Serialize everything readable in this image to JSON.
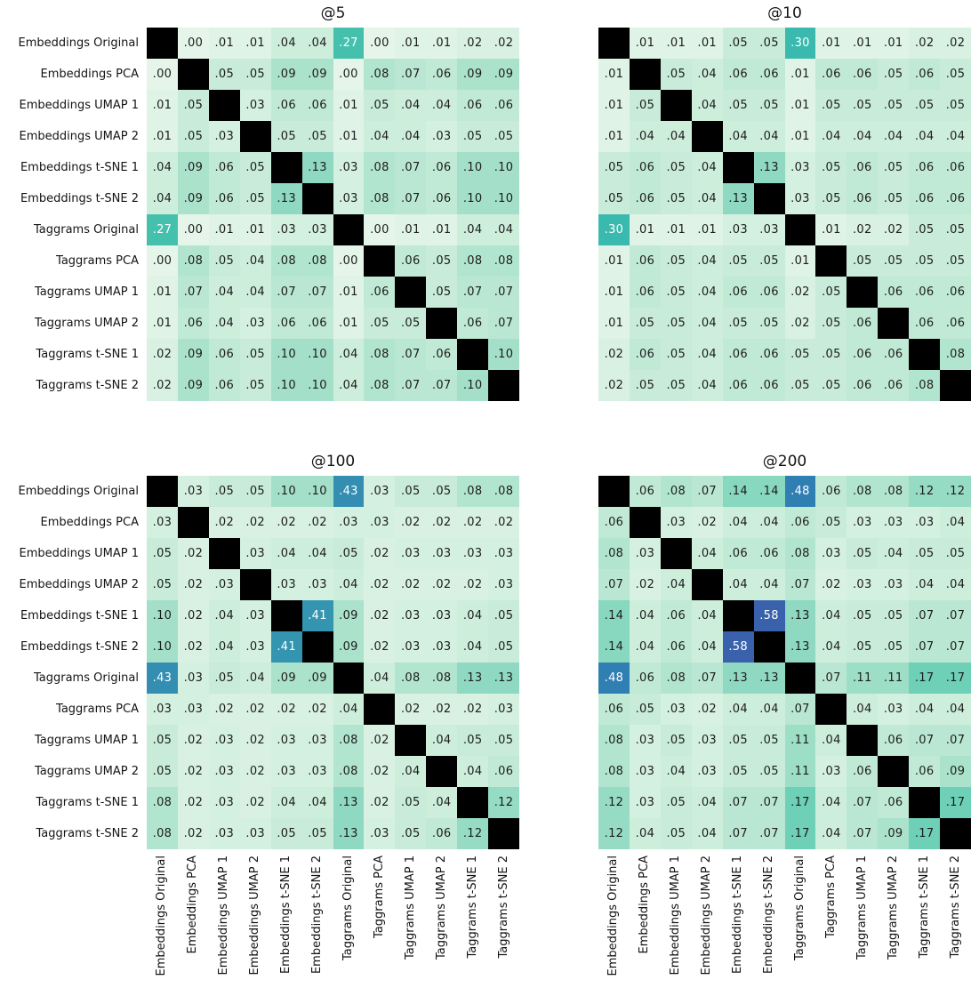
{
  "figure": {
    "background": "#ffffff",
    "row_labels": [
      "Embeddings Original",
      "Embeddings PCA",
      "Embeddings UMAP 1",
      "Embeddings UMAP 2",
      "Embeddings t-SNE 1",
      "Embeddings t-SNE 2",
      "Taggrams Original",
      "Taggrams PCA",
      "Taggrams UMAP 1",
      "Taggrams UMAP 2",
      "Taggrams t-SNE 1",
      "Taggrams t-SNE 2"
    ],
    "col_labels": [
      "Embeddings Original",
      "Embeddings PCA",
      "Embeddings UMAP 1",
      "Embeddings UMAP 2",
      "Embeddings t-SNE 1",
      "Embeddings t-SNE 2",
      "Taggrams Original",
      "Taggrams PCA",
      "Taggrams UMAP 1",
      "Taggrams UMAP 2",
      "Taggrams t-SNE 1",
      "Taggrams t-SNE 2"
    ]
  },
  "style": {
    "diagonal_color": "#000000",
    "annotation_dark_color": "#1c1c1c",
    "annotation_light_color": "#ffffff",
    "light_text_threshold": 0.25,
    "colormap_stops": [
      [
        0.0,
        "#e5f5ea"
      ],
      [
        0.05,
        "#c8ecd9"
      ],
      [
        0.1,
        "#a4e0c9"
      ],
      [
        0.14,
        "#88d7bf"
      ],
      [
        0.17,
        "#6ed0b6"
      ],
      [
        0.2,
        "#5ccab1"
      ],
      [
        0.27,
        "#44c0ad"
      ],
      [
        0.3,
        "#3abaae"
      ],
      [
        0.43,
        "#338eb1"
      ],
      [
        0.48,
        "#2f7fb3"
      ],
      [
        0.58,
        "#3a62ac"
      ],
      [
        0.75,
        "#3c3e70"
      ],
      [
        1.0,
        "#0b0405"
      ]
    ]
  },
  "chart_data": [
    {
      "type": "heatmap",
      "title": "@5",
      "annotation_format": ".XX",
      "categories": [
        "Embeddings Original",
        "Embeddings PCA",
        "Embeddings UMAP 1",
        "Embeddings UMAP 2",
        "Embeddings t-SNE 1",
        "Embeddings t-SNE 2",
        "Taggrams Original",
        "Taggrams PCA",
        "Taggrams UMAP 1",
        "Taggrams UMAP 2",
        "Taggrams t-SNE 1",
        "Taggrams t-SNE 2"
      ],
      "values": [
        [
          null,
          0.0,
          0.01,
          0.01,
          0.04,
          0.04,
          0.27,
          0.0,
          0.01,
          0.01,
          0.02,
          0.02
        ],
        [
          0.0,
          null,
          0.05,
          0.05,
          0.09,
          0.09,
          0.0,
          0.08,
          0.07,
          0.06,
          0.09,
          0.09
        ],
        [
          0.01,
          0.05,
          null,
          0.03,
          0.06,
          0.06,
          0.01,
          0.05,
          0.04,
          0.04,
          0.06,
          0.06
        ],
        [
          0.01,
          0.05,
          0.03,
          null,
          0.05,
          0.05,
          0.01,
          0.04,
          0.04,
          0.03,
          0.05,
          0.05
        ],
        [
          0.04,
          0.09,
          0.06,
          0.05,
          null,
          0.13,
          0.03,
          0.08,
          0.07,
          0.06,
          0.1,
          0.1
        ],
        [
          0.04,
          0.09,
          0.06,
          0.05,
          0.13,
          null,
          0.03,
          0.08,
          0.07,
          0.06,
          0.1,
          0.1
        ],
        [
          0.27,
          0.0,
          0.01,
          0.01,
          0.03,
          0.03,
          null,
          0.0,
          0.01,
          0.01,
          0.04,
          0.04
        ],
        [
          0.0,
          0.08,
          0.05,
          0.04,
          0.08,
          0.08,
          0.0,
          null,
          0.06,
          0.05,
          0.08,
          0.08
        ],
        [
          0.01,
          0.07,
          0.04,
          0.04,
          0.07,
          0.07,
          0.01,
          0.06,
          null,
          0.05,
          0.07,
          0.07
        ],
        [
          0.01,
          0.06,
          0.04,
          0.03,
          0.06,
          0.06,
          0.01,
          0.05,
          0.05,
          null,
          0.06,
          0.07
        ],
        [
          0.02,
          0.09,
          0.06,
          0.05,
          0.1,
          0.1,
          0.04,
          0.08,
          0.07,
          0.06,
          null,
          0.1
        ],
        [
          0.02,
          0.09,
          0.06,
          0.05,
          0.1,
          0.1,
          0.04,
          0.08,
          0.07,
          0.07,
          0.1,
          null
        ]
      ]
    },
    {
      "type": "heatmap",
      "title": "@10",
      "annotation_format": ".XX",
      "categories": [
        "Embeddings Original",
        "Embeddings PCA",
        "Embeddings UMAP 1",
        "Embeddings UMAP 2",
        "Embeddings t-SNE 1",
        "Embeddings t-SNE 2",
        "Taggrams Original",
        "Taggrams PCA",
        "Taggrams UMAP 1",
        "Taggrams UMAP 2",
        "Taggrams t-SNE 1",
        "Taggrams t-SNE 2"
      ],
      "values": [
        [
          null,
          0.01,
          0.01,
          0.01,
          0.05,
          0.05,
          0.3,
          0.01,
          0.01,
          0.01,
          0.02,
          0.02
        ],
        [
          0.01,
          null,
          0.05,
          0.04,
          0.06,
          0.06,
          0.01,
          0.06,
          0.06,
          0.05,
          0.06,
          0.05
        ],
        [
          0.01,
          0.05,
          null,
          0.04,
          0.05,
          0.05,
          0.01,
          0.05,
          0.05,
          0.05,
          0.05,
          0.05
        ],
        [
          0.01,
          0.04,
          0.04,
          null,
          0.04,
          0.04,
          0.01,
          0.04,
          0.04,
          0.04,
          0.04,
          0.04
        ],
        [
          0.05,
          0.06,
          0.05,
          0.04,
          null,
          0.13,
          0.03,
          0.05,
          0.06,
          0.05,
          0.06,
          0.06
        ],
        [
          0.05,
          0.06,
          0.05,
          0.04,
          0.13,
          null,
          0.03,
          0.05,
          0.06,
          0.05,
          0.06,
          0.06
        ],
        [
          0.3,
          0.01,
          0.01,
          0.01,
          0.03,
          0.03,
          null,
          0.01,
          0.02,
          0.02,
          0.05,
          0.05
        ],
        [
          0.01,
          0.06,
          0.05,
          0.04,
          0.05,
          0.05,
          0.01,
          null,
          0.05,
          0.05,
          0.05,
          0.05
        ],
        [
          0.01,
          0.06,
          0.05,
          0.04,
          0.06,
          0.06,
          0.02,
          0.05,
          null,
          0.06,
          0.06,
          0.06
        ],
        [
          0.01,
          0.05,
          0.05,
          0.04,
          0.05,
          0.05,
          0.02,
          0.05,
          0.06,
          null,
          0.06,
          0.06
        ],
        [
          0.02,
          0.06,
          0.05,
          0.04,
          0.06,
          0.06,
          0.05,
          0.05,
          0.06,
          0.06,
          null,
          0.08
        ],
        [
          0.02,
          0.05,
          0.05,
          0.04,
          0.06,
          0.06,
          0.05,
          0.05,
          0.06,
          0.06,
          0.08,
          null
        ]
      ]
    },
    {
      "type": "heatmap",
      "title": "@100",
      "annotation_format": ".XX",
      "categories": [
        "Embeddings Original",
        "Embeddings PCA",
        "Embeddings UMAP 1",
        "Embeddings UMAP 2",
        "Embeddings t-SNE 1",
        "Embeddings t-SNE 2",
        "Taggrams Original",
        "Taggrams PCA",
        "Taggrams UMAP 1",
        "Taggrams UMAP 2",
        "Taggrams t-SNE 1",
        "Taggrams t-SNE 2"
      ],
      "values": [
        [
          null,
          0.03,
          0.05,
          0.05,
          0.1,
          0.1,
          0.43,
          0.03,
          0.05,
          0.05,
          0.08,
          0.08
        ],
        [
          0.03,
          null,
          0.02,
          0.02,
          0.02,
          0.02,
          0.03,
          0.03,
          0.02,
          0.02,
          0.02,
          0.02
        ],
        [
          0.05,
          0.02,
          null,
          0.03,
          0.04,
          0.04,
          0.05,
          0.02,
          0.03,
          0.03,
          0.03,
          0.03
        ],
        [
          0.05,
          0.02,
          0.03,
          null,
          0.03,
          0.03,
          0.04,
          0.02,
          0.02,
          0.02,
          0.02,
          0.03
        ],
        [
          0.1,
          0.02,
          0.04,
          0.03,
          null,
          0.41,
          0.09,
          0.02,
          0.03,
          0.03,
          0.04,
          0.05
        ],
        [
          0.1,
          0.02,
          0.04,
          0.03,
          0.41,
          null,
          0.09,
          0.02,
          0.03,
          0.03,
          0.04,
          0.05
        ],
        [
          0.43,
          0.03,
          0.05,
          0.04,
          0.09,
          0.09,
          null,
          0.04,
          0.08,
          0.08,
          0.13,
          0.13
        ],
        [
          0.03,
          0.03,
          0.02,
          0.02,
          0.02,
          0.02,
          0.04,
          null,
          0.02,
          0.02,
          0.02,
          0.03
        ],
        [
          0.05,
          0.02,
          0.03,
          0.02,
          0.03,
          0.03,
          0.08,
          0.02,
          null,
          0.04,
          0.05,
          0.05
        ],
        [
          0.05,
          0.02,
          0.03,
          0.02,
          0.03,
          0.03,
          0.08,
          0.02,
          0.04,
          null,
          0.04,
          0.06
        ],
        [
          0.08,
          0.02,
          0.03,
          0.02,
          0.04,
          0.04,
          0.13,
          0.02,
          0.05,
          0.04,
          null,
          0.12
        ],
        [
          0.08,
          0.02,
          0.03,
          0.03,
          0.05,
          0.05,
          0.13,
          0.03,
          0.05,
          0.06,
          0.12,
          null
        ]
      ]
    },
    {
      "type": "heatmap",
      "title": "@200",
      "annotation_format": ".XX",
      "categories": [
        "Embeddings Original",
        "Embeddings PCA",
        "Embeddings UMAP 1",
        "Embeddings UMAP 2",
        "Embeddings t-SNE 1",
        "Embeddings t-SNE 2",
        "Taggrams Original",
        "Taggrams PCA",
        "Taggrams UMAP 1",
        "Taggrams UMAP 2",
        "Taggrams t-SNE 1",
        "Taggrams t-SNE 2"
      ],
      "values": [
        [
          null,
          0.06,
          0.08,
          0.07,
          0.14,
          0.14,
          0.48,
          0.06,
          0.08,
          0.08,
          0.12,
          0.12
        ],
        [
          0.06,
          null,
          0.03,
          0.02,
          0.04,
          0.04,
          0.06,
          0.05,
          0.03,
          0.03,
          0.03,
          0.04
        ],
        [
          0.08,
          0.03,
          null,
          0.04,
          0.06,
          0.06,
          0.08,
          0.03,
          0.05,
          0.04,
          0.05,
          0.05
        ],
        [
          0.07,
          0.02,
          0.04,
          null,
          0.04,
          0.04,
          0.07,
          0.02,
          0.03,
          0.03,
          0.04,
          0.04
        ],
        [
          0.14,
          0.04,
          0.06,
          0.04,
          null,
          0.58,
          0.13,
          0.04,
          0.05,
          0.05,
          0.07,
          0.07
        ],
        [
          0.14,
          0.04,
          0.06,
          0.04,
          0.58,
          null,
          0.13,
          0.04,
          0.05,
          0.05,
          0.07,
          0.07
        ],
        [
          0.48,
          0.06,
          0.08,
          0.07,
          0.13,
          0.13,
          null,
          0.07,
          0.11,
          0.11,
          0.17,
          0.17
        ],
        [
          0.06,
          0.05,
          0.03,
          0.02,
          0.04,
          0.04,
          0.07,
          null,
          0.04,
          0.03,
          0.04,
          0.04
        ],
        [
          0.08,
          0.03,
          0.05,
          0.03,
          0.05,
          0.05,
          0.11,
          0.04,
          null,
          0.06,
          0.07,
          0.07
        ],
        [
          0.08,
          0.03,
          0.04,
          0.03,
          0.05,
          0.05,
          0.11,
          0.03,
          0.06,
          null,
          0.06,
          0.09
        ],
        [
          0.12,
          0.03,
          0.05,
          0.04,
          0.07,
          0.07,
          0.17,
          0.04,
          0.07,
          0.06,
          null,
          0.17
        ],
        [
          0.12,
          0.04,
          0.05,
          0.04,
          0.07,
          0.07,
          0.17,
          0.04,
          0.07,
          0.09,
          0.17,
          null
        ]
      ]
    }
  ]
}
